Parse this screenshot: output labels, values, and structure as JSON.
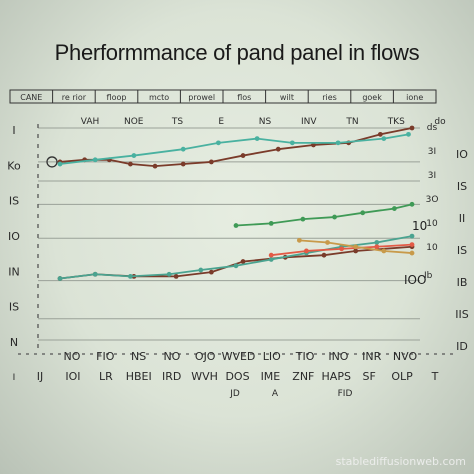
{
  "chart_data": {
    "type": "line",
    "title": "Pherformmance of pand panel in flows",
    "header_row": [
      "CANE",
      "re rior",
      "floop",
      "mcto",
      "prowel",
      "flos",
      "wilt",
      "ries",
      "goek",
      "ione"
    ],
    "top_ticks": [
      "VAH",
      "NOE",
      "TS",
      "E",
      "NS",
      "INV",
      "TN",
      "TKS",
      "do"
    ],
    "bottom_ticks": [
      "NO",
      "FIO",
      "NS",
      "NO",
      "OJO",
      "WVED",
      "LIO",
      "TIO",
      "INO",
      "INR",
      "NVO"
    ],
    "bottom_ticks_2": [
      "IJ",
      "IOI",
      "LR",
      "HBEI",
      "IRD",
      "WVH",
      "DOS",
      "IME",
      "ZNF",
      "HAPS",
      "SF",
      "OLP",
      "T"
    ],
    "bottom_ticks_3": [
      "I",
      "JD",
      "A",
      "FID"
    ],
    "left_ticks": [
      "I",
      "Ko",
      "IS",
      "IO",
      "IN",
      "IS",
      "N"
    ],
    "right_ticks": [
      "IO",
      "IS",
      "II",
      "IS",
      "IB",
      "IIS",
      "ID"
    ],
    "right_side_values": [
      "ds",
      "3I",
      "3I",
      "3O",
      "10",
      "10"
    ],
    "annotations": [
      "10",
      "IOO",
      "Ib"
    ],
    "grid": true,
    "xlim": [
      0,
      100
    ],
    "ylim": [
      0,
      100
    ],
    "series": [
      {
        "color": "#7a3b2a",
        "values": [
          [
            0,
            84
          ],
          [
            7,
            85
          ],
          [
            14,
            85
          ],
          [
            20,
            83
          ],
          [
            27,
            82
          ],
          [
            35,
            83
          ],
          [
            43,
            84
          ],
          [
            52,
            87
          ],
          [
            62,
            90
          ],
          [
            72,
            92
          ],
          [
            82,
            93
          ],
          [
            91,
            97
          ],
          [
            100,
            100
          ]
        ]
      },
      {
        "color": "#49b1a0",
        "values": [
          [
            0,
            83
          ],
          [
            10,
            85
          ],
          [
            21,
            87
          ],
          [
            35,
            90
          ],
          [
            45,
            93
          ],
          [
            56,
            95
          ],
          [
            66,
            93
          ],
          [
            79,
            93
          ],
          [
            92,
            95
          ],
          [
            99,
            97
          ]
        ]
      },
      {
        "color": "#3f9a56",
        "values": [
          [
            50,
            54
          ],
          [
            60,
            55
          ],
          [
            69,
            57
          ],
          [
            78,
            58
          ],
          [
            86,
            60
          ],
          [
            95,
            62
          ],
          [
            100,
            64
          ]
        ]
      },
      {
        "color": "#7a3b2a",
        "values": [
          [
            0,
            29
          ],
          [
            10,
            31
          ],
          [
            21,
            30
          ],
          [
            33,
            30
          ],
          [
            43,
            32
          ],
          [
            52,
            37
          ],
          [
            64,
            39
          ],
          [
            75,
            40
          ],
          [
            84,
            42
          ],
          [
            100,
            44
          ]
        ]
      },
      {
        "color": "#4aa390",
        "values": [
          [
            0,
            29
          ],
          [
            10,
            31
          ],
          [
            20,
            30
          ],
          [
            31,
            31
          ],
          [
            40,
            33
          ],
          [
            50,
            35
          ],
          [
            60,
            38
          ],
          [
            70,
            41
          ],
          [
            80,
            44
          ],
          [
            90,
            46
          ],
          [
            100,
            49
          ]
        ]
      },
      {
        "color": "#e35a46",
        "values": [
          [
            60,
            40
          ],
          [
            70,
            42
          ],
          [
            80,
            43
          ],
          [
            90,
            44
          ],
          [
            100,
            45
          ]
        ]
      },
      {
        "color": "#c89a4a",
        "values": [
          [
            68,
            47
          ],
          [
            76,
            46
          ],
          [
            84,
            44
          ],
          [
            92,
            42
          ],
          [
            100,
            41
          ]
        ]
      }
    ]
  },
  "watermark": "stablediffusionweb.com"
}
